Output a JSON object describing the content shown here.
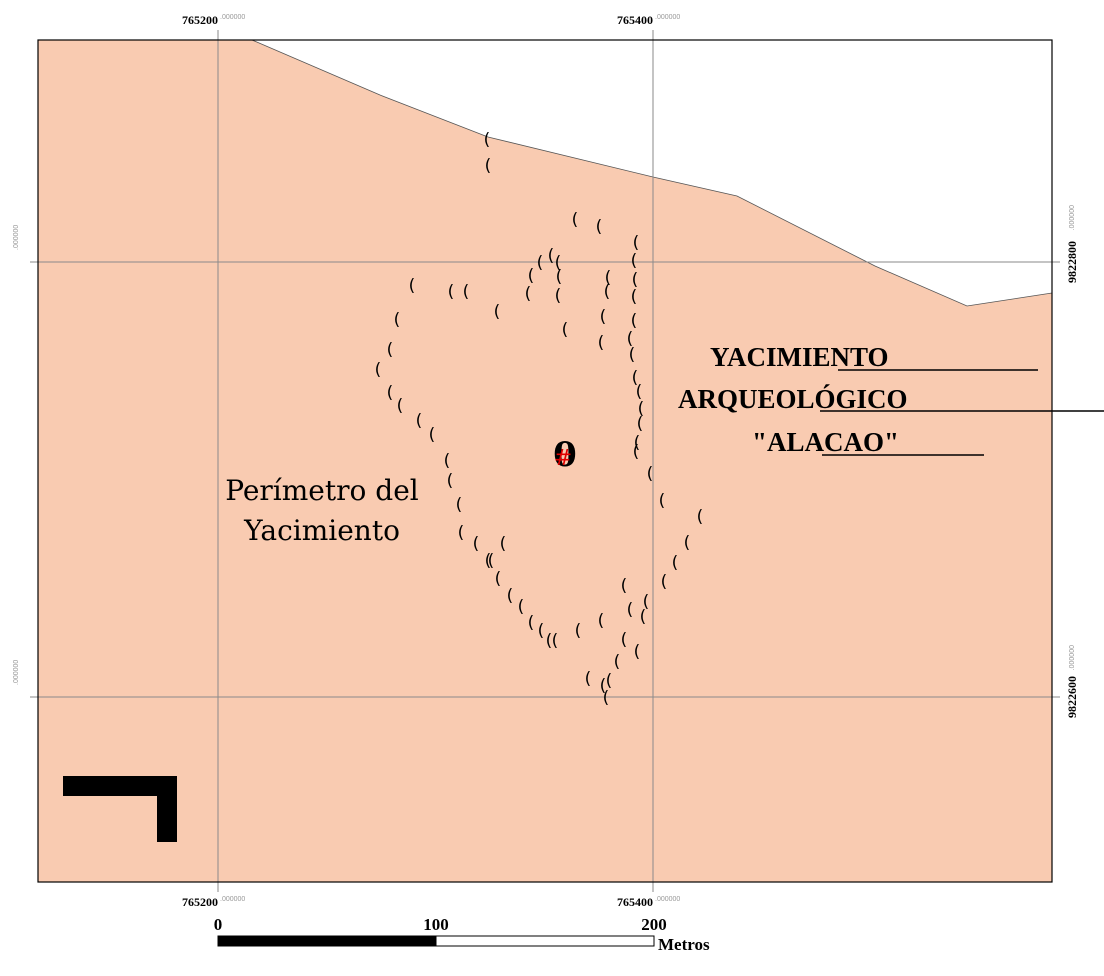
{
  "colors": {
    "land": "#f9cbb1",
    "grid": "#8a8a8a",
    "frame": "#000000",
    "center_hash": "#e00000"
  },
  "grid": {
    "x_labels_top": [
      {
        "main": "765200",
        "dec": ".000000"
      },
      {
        "main": "765400",
        "dec": ".000000"
      }
    ],
    "x_labels_bottom": [
      {
        "main": "765200",
        "dec": ".000000"
      },
      {
        "main": "765400",
        "dec": ".000000"
      }
    ],
    "y_labels_right": [
      {
        "main": "9822800",
        "dec": ".000000"
      },
      {
        "main": "9822600",
        "dec": ".000000"
      }
    ],
    "y_labels_left": [
      {
        "dec": ".000000"
      },
      {
        "dec": ".000000"
      }
    ]
  },
  "labels": {
    "perimeter_line1": "Perímetro del",
    "perimeter_line2": "Yacimiento",
    "site_line1": "YACIMIENTO",
    "site_line2": "ARQUEOLÓGICO",
    "site_line3": "\"ALACAO\"",
    "center_symbol": "0",
    "center_hash": "#"
  },
  "perimeter_marks": {
    "glyph": "(",
    "count": 84
  },
  "scale_bar": {
    "ticks": [
      "0",
      "100",
      "200"
    ],
    "unit": "Metros"
  },
  "north_arrow_icon": "corner-block-icon"
}
